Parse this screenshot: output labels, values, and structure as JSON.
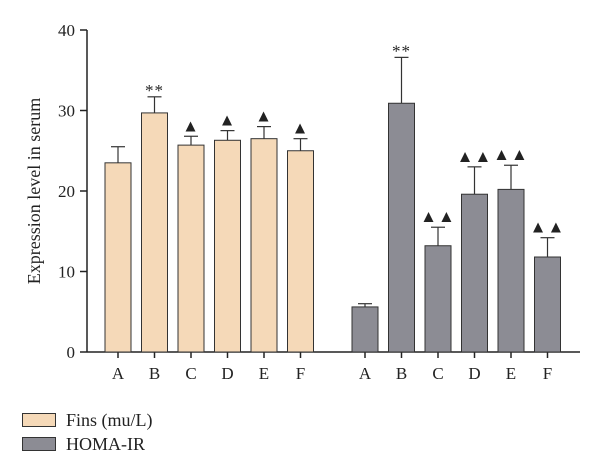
{
  "chart_data": {
    "type": "bar",
    "xlabel": "",
    "ylabel": "Expression level in serum",
    "ylim": [
      0,
      40
    ],
    "yticks": [
      "0",
      "10",
      "20",
      "30",
      "40"
    ],
    "grid": false,
    "legend_position": "bottom-left",
    "series": [
      {
        "name": "Fins (mu/L)",
        "color": "#f5d9b8",
        "categories": [
          "A",
          "B",
          "C",
          "D",
          "E",
          "F"
        ],
        "values": [
          23.5,
          29.7,
          25.7,
          26.3,
          26.5,
          25.0
        ],
        "errors": [
          2.0,
          2.0,
          1.1,
          1.2,
          1.5,
          1.5
        ],
        "significance": [
          "",
          "**",
          "▲",
          "▲",
          "▲",
          "▲"
        ]
      },
      {
        "name": "HOMA-IR",
        "color": "#8c8c94",
        "categories": [
          "A",
          "B",
          "C",
          "D",
          "E",
          "F"
        ],
        "values": [
          5.6,
          30.9,
          13.2,
          19.6,
          20.2,
          11.8
        ],
        "errors": [
          0.4,
          5.7,
          2.3,
          3.4,
          3.0,
          2.4
        ],
        "significance": [
          "",
          "**",
          "▲▲",
          "▲▲",
          "▲▲",
          "▲▲"
        ]
      }
    ]
  }
}
